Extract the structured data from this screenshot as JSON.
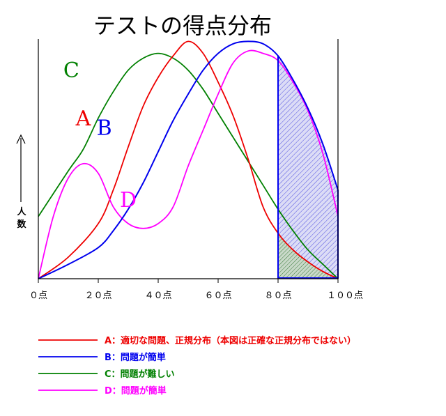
{
  "chart_data": {
    "type": "line",
    "title": "テストの得点分布",
    "ylabel_chars": [
      "人",
      "数"
    ],
    "xlim": [
      0,
      100
    ],
    "ylim": [
      0,
      100
    ],
    "x_ticks": [
      {
        "value": 0,
        "label": "０点"
      },
      {
        "value": 20,
        "label": "２０点"
      },
      {
        "value": 40,
        "label": "４０点"
      },
      {
        "value": 60,
        "label": "６０点"
      },
      {
        "value": 80,
        "label": "８０点"
      },
      {
        "value": 100,
        "label": "１００点"
      }
    ],
    "shaded_region": {
      "x_from": 80,
      "x_to": 100
    },
    "series": [
      {
        "key": "A",
        "label": "A",
        "color": "#ee0000",
        "legend": "A：適切な問題、正規分布（本図は正確な正規分布ではない）",
        "points": [
          [
            0,
            0
          ],
          [
            10,
            9
          ],
          [
            20,
            23
          ],
          [
            25,
            37
          ],
          [
            30,
            55
          ],
          [
            35,
            72
          ],
          [
            40,
            84
          ],
          [
            45,
            93
          ],
          [
            50,
            99
          ],
          [
            55,
            94
          ],
          [
            60,
            82
          ],
          [
            65,
            68
          ],
          [
            70,
            50
          ],
          [
            75,
            30
          ],
          [
            80,
            19
          ],
          [
            85,
            12
          ],
          [
            90,
            7
          ],
          [
            95,
            3
          ],
          [
            100,
            0
          ]
        ]
      },
      {
        "key": "B",
        "label": "B",
        "color": "#0000ee",
        "legend": "B：問題が簡単",
        "points": [
          [
            0,
            0
          ],
          [
            10,
            6
          ],
          [
            20,
            13
          ],
          [
            25,
            20
          ],
          [
            30,
            29
          ],
          [
            35,
            40
          ],
          [
            40,
            53
          ],
          [
            45,
            66
          ],
          [
            50,
            77
          ],
          [
            55,
            87
          ],
          [
            60,
            94
          ],
          [
            65,
            98
          ],
          [
            70,
            99
          ],
          [
            75,
            98
          ],
          [
            80,
            93
          ],
          [
            85,
            83
          ],
          [
            90,
            71
          ],
          [
            95,
            56
          ],
          [
            100,
            37
          ]
        ]
      },
      {
        "key": "C",
        "label": "C",
        "color": "#008000",
        "legend": "C：問題が難しい",
        "points": [
          [
            0,
            26
          ],
          [
            10,
            45
          ],
          [
            15,
            54
          ],
          [
            20,
            67
          ],
          [
            25,
            78
          ],
          [
            30,
            87
          ],
          [
            35,
            92
          ],
          [
            40,
            94
          ],
          [
            45,
            92
          ],
          [
            50,
            87
          ],
          [
            55,
            79
          ],
          [
            60,
            69
          ],
          [
            65,
            59
          ],
          [
            70,
            49
          ],
          [
            75,
            39
          ],
          [
            80,
            29
          ],
          [
            85,
            20
          ],
          [
            90,
            12
          ],
          [
            95,
            6
          ],
          [
            100,
            0
          ]
        ]
      },
      {
        "key": "D",
        "label": "D",
        "color": "#ff00ff",
        "legend": "D：問題が簡単",
        "points": [
          [
            0,
            0
          ],
          [
            5,
            26
          ],
          [
            10,
            42
          ],
          [
            15,
            48
          ],
          [
            20,
            44
          ],
          [
            25,
            30
          ],
          [
            30,
            23
          ],
          [
            35,
            21
          ],
          [
            40,
            23
          ],
          [
            45,
            30
          ],
          [
            50,
            47
          ],
          [
            55,
            62
          ],
          [
            60,
            77
          ],
          [
            65,
            90
          ],
          [
            70,
            95
          ],
          [
            75,
            94
          ],
          [
            80,
            91
          ],
          [
            85,
            82
          ],
          [
            90,
            70
          ],
          [
            95,
            52
          ],
          [
            100,
            26
          ]
        ]
      }
    ],
    "legend_position": "bottom"
  }
}
